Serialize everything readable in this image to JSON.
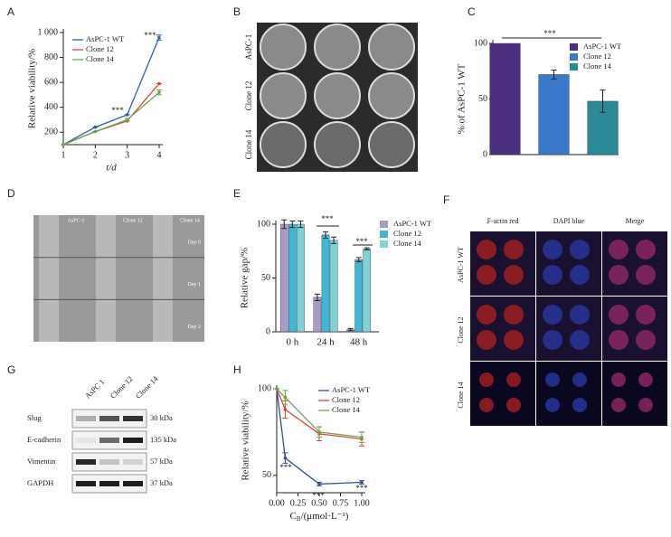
{
  "chart_data": [
    {
      "type": "line",
      "panel": "A",
      "xlabel": "t/d",
      "ylabel": "Relative viability/%",
      "x": [
        1,
        2,
        3,
        4
      ],
      "xlim": [
        1,
        4
      ],
      "xticks": [
        1,
        2,
        3,
        4
      ],
      "ylim": [
        100,
        1000
      ],
      "yticks": [
        200,
        400,
        600,
        800,
        {
          "value": 1000,
          "label": "1 000"
        }
      ],
      "legend": "top-left",
      "series": [
        {
          "name": "AsPC-1 WT",
          "color": "#2f5fb0",
          "values": [
            100,
            240,
            340,
            960
          ],
          "errors": [
            0,
            0,
            0,
            20
          ]
        },
        {
          "name": "Clone 12",
          "color": "#e0452c",
          "values": [
            100,
            205,
            290,
            590
          ],
          "errors": [
            0,
            0,
            0,
            0
          ]
        },
        {
          "name": "Clone 14",
          "color": "#6aa84f",
          "values": [
            100,
            205,
            300,
            520
          ],
          "errors": [
            0,
            0,
            10,
            20
          ]
        }
      ],
      "annotations": [
        "***",
        "***"
      ]
    },
    {
      "type": "bar",
      "panel": "C",
      "ylabel": "% of AsPC-1 WT",
      "categories": [
        null
      ],
      "ylim": [
        0,
        100
      ],
      "yticks": [
        0,
        50,
        100
      ],
      "legend": "right",
      "series": [
        {
          "name": "AsPC-1 WT",
          "color": "#4b2f7e",
          "values": [
            100
          ],
          "errors": [
            0
          ]
        },
        {
          "name": "Clone 12",
          "color": "#3a78c9",
          "values": [
            72
          ],
          "errors": [
            4
          ]
        },
        {
          "name": "Clone 14",
          "color": "#2a8a96",
          "values": [
            48
          ],
          "errors": [
            10
          ]
        }
      ],
      "annotations": [
        "***"
      ]
    },
    {
      "type": "bar",
      "panel": "E",
      "ylabel": "Relative gap/%",
      "categories": [
        "0 h",
        "24 h",
        "48 h"
      ],
      "ylim": [
        0,
        100
      ],
      "yticks": [
        0,
        50,
        100
      ],
      "legend": "top-right",
      "series": [
        {
          "name": "AsPC-1 WT",
          "color": "#a99bc9",
          "values": [
            100,
            32,
            2
          ],
          "errors": [
            4,
            3,
            1
          ]
        },
        {
          "name": "Clone 12",
          "color": "#3fb8d8",
          "values": [
            100,
            90,
            67
          ],
          "errors": [
            3,
            3,
            2
          ]
        },
        {
          "name": "Clone 14",
          "color": "#7fd3d6",
          "values": [
            100,
            85,
            77
          ],
          "errors": [
            3,
            3,
            1
          ]
        }
      ],
      "annotations": [
        "***",
        "***"
      ]
    },
    {
      "type": "line",
      "panel": "H",
      "xlabel": {
        "main": "C",
        "sub": "B",
        "rest": "/(μmol·L⁻¹)"
      },
      "ylabel": "Relative viability/%",
      "x": [
        0,
        0.1,
        0.5,
        1.0
      ],
      "xlim": [
        0,
        1
      ],
      "xticks": [
        {
          "value": 0,
          "label": "0.00"
        },
        {
          "value": 0.25,
          "label": "0.25"
        },
        {
          "value": 0.5,
          "label": "0.50"
        },
        {
          "value": 0.75,
          "label": "0.75"
        },
        {
          "value": 1,
          "label": "1.00"
        }
      ],
      "ylim": [
        40,
        100
      ],
      "yticks": [
        50,
        100
      ],
      "legend": "top-right",
      "series": [
        {
          "name": "AsPC-1 WT",
          "color": "#2f4fa0",
          "values": [
            100,
            60,
            45,
            46
          ],
          "errors": [
            0,
            3,
            1,
            1
          ]
        },
        {
          "name": "Clone 12",
          "color": "#e0452c",
          "values": [
            100,
            88,
            74,
            71
          ],
          "errors": [
            0,
            5,
            4,
            4
          ]
        },
        {
          "name": "Clone 14",
          "color": "#6aa84f",
          "values": [
            100,
            95,
            75,
            72
          ],
          "errors": [
            0,
            4,
            3,
            3
          ]
        }
      ],
      "annotations": [
        "***",
        "***",
        "***"
      ]
    }
  ],
  "figure": {
    "B": {
      "panel": "B",
      "rows": [
        "AsPC-1",
        "Clone 12",
        "Clone 14"
      ]
    },
    "D": {
      "panel": "D",
      "columns": [
        "AsPC-1",
        "Clone 12",
        "Clone 14"
      ],
      "rows": [
        "Day 0",
        "Day 1",
        "Day 2"
      ]
    },
    "F": {
      "panel": "F",
      "columns": [
        "F-actin red",
        "DAPI blue",
        "Merge"
      ],
      "rows": [
        "AsPC-1 WT",
        "Clone 12",
        "Clone 14"
      ]
    },
    "G": {
      "panel": "G",
      "columns": [
        "AsPC 1",
        "Clone 12",
        "Clone 14"
      ],
      "rows": [
        {
          "name": "Slug",
          "size": "30 kDa"
        },
        {
          "name": "E-cadherin",
          "size": "135 kDa"
        },
        {
          "name": "Vimentin",
          "size": "57 kDa"
        },
        {
          "name": "GAPDH",
          "size": "37 kDa"
        }
      ]
    }
  }
}
